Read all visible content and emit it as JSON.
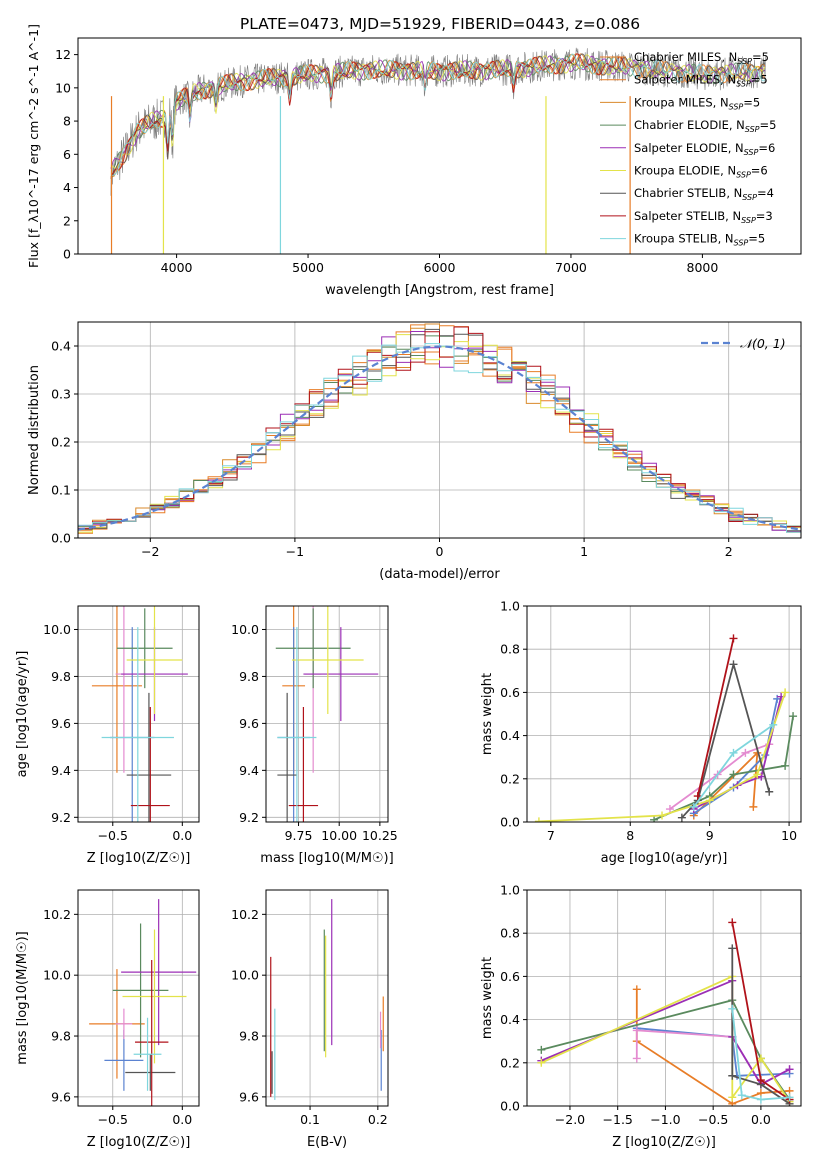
{
  "figure_title": "PLATE=0473, MJD=51929, FIBERID=0443, z=0.086",
  "colors": [
    "#e87d27",
    "#e8801e",
    "#e0892c",
    "#5a8a5e",
    "#9b2fb5",
    "#e3e34a",
    "#555555",
    "#b0121a",
    "#7fd6dd"
  ],
  "chart_data": [
    {
      "type": "line",
      "id": "spectrum",
      "title": "PLATE=0473, MJD=51929, FIBERID=0443, z=0.086",
      "xlabel": "wavelength [Angstrom, rest frame]",
      "ylabel": "Flux [f_λ10^-17 erg cm^-2 s^-1 A^-1]",
      "xlim": [
        3250,
        8750
      ],
      "ylim": [
        0,
        13
      ],
      "xticks": [
        "4000",
        "5000",
        "6000",
        "7000",
        "8000"
      ],
      "yticks": [
        "0",
        "2",
        "4",
        "6",
        "8",
        "10",
        "12"
      ],
      "legend_position": "right",
      "legend": [
        {
          "name": "Chabrier MILES",
          "nssp": "=5"
        },
        {
          "name": "Salpeter MILES",
          "nssp": "=5"
        },
        {
          "name": "Kroupa MILES",
          "nssp": "=5"
        },
        {
          "name": "Chabrier ELODIE",
          "nssp": "=5"
        },
        {
          "name": "Salpeter ELODIE",
          "nssp": "=6"
        },
        {
          "name": "Kroupa ELODIE",
          "nssp": "=6"
        },
        {
          "name": "Chabrier STELIB",
          "nssp": "=4"
        },
        {
          "name": "Salpeter STELIB",
          "nssp": "=3"
        },
        {
          "name": "Kroupa STELIB",
          "nssp": "=5"
        }
      ],
      "nssp_sub": "SSP",
      "spectrum_key": {
        "x": [
          3500,
          3600,
          3700,
          3800,
          3900,
          4000,
          4200,
          4500,
          5000,
          5500,
          6000,
          6500,
          7000,
          7500,
          8000,
          8500
        ],
        "y": [
          4.8,
          6.0,
          7.4,
          7.9,
          8.2,
          9.2,
          9.9,
          10.4,
          10.8,
          11.1,
          11.0,
          11.1,
          11.5,
          11.2,
          10.8,
          11.0
        ]
      }
    },
    {
      "type": "step",
      "id": "residuals",
      "xlabel": "(data-model)/error",
      "ylabel": "Normed distribution",
      "xlim": [
        -2.5,
        2.5
      ],
      "ylim": [
        0,
        0.45
      ],
      "xticks": [
        "−2",
        "−1",
        "0",
        "1",
        "2"
      ],
      "yticks": [
        "0.0",
        "0.1",
        "0.2",
        "0.3",
        "0.4"
      ],
      "grid": true,
      "legend_position": "top-right",
      "legend_label": "𝒩(0, 1)",
      "gaussian": {
        "mean": 0,
        "sigma": 1,
        "color": "#5b83d1"
      }
    },
    {
      "type": "errorbar",
      "id": "age-vs-z",
      "xlabel": "Z [log10(Z/Z☉)]",
      "ylabel": "age  [log10(age/yr)]",
      "xlim": [
        -0.75,
        0.12
      ],
      "ylim": [
        9.18,
        10.1
      ],
      "xticks": [
        "−0.5",
        "0.0"
      ],
      "yticks": [
        "9.2",
        "9.4",
        "9.6",
        "9.8",
        "10.0"
      ],
      "points": [
        {
          "x": -0.47,
          "xerr": 0.18,
          "y": 9.76,
          "yerr": 0.37,
          "color": "#e87d27"
        },
        {
          "x": -0.36,
          "xerr": 0.16,
          "y": 9.54,
          "yerr": 0.47,
          "color": "#5b83d1"
        },
        {
          "x": -0.42,
          "xerr": 0.06,
          "y": 9.81,
          "yerr": 0.42,
          "color": "#e48bd0"
        },
        {
          "x": -0.27,
          "xerr": 0.2,
          "y": 9.92,
          "yerr": 0.17,
          "color": "#5a8a5e"
        },
        {
          "x": -0.2,
          "xerr": 0.24,
          "y": 9.81,
          "yerr": 0.2,
          "color": "#9b2fb5"
        },
        {
          "x": -0.2,
          "xerr": 0.2,
          "y": 9.87,
          "yerr": 0.23,
          "color": "#e3e34a"
        },
        {
          "x": -0.24,
          "xerr": 0.16,
          "y": 9.38,
          "yerr": 0.35,
          "color": "#555555"
        },
        {
          "x": -0.23,
          "xerr": 0.14,
          "y": 9.25,
          "yerr": 0.42,
          "color": "#b0121a"
        },
        {
          "x": -0.32,
          "xerr": 0.26,
          "y": 9.54,
          "yerr": 0.47,
          "color": "#7fd6dd"
        }
      ]
    },
    {
      "type": "errorbar",
      "id": "age-vs-mass",
      "xlabel": "mass [log10(M/M☉)]",
      "ylabel": "",
      "xlim": [
        9.55,
        10.3
      ],
      "ylim": [
        9.18,
        10.1
      ],
      "xticks": [
        "9.75",
        "10.00",
        "10.25"
      ],
      "yticks": [
        "9.2",
        "9.4",
        "9.6",
        "9.8",
        "10.0"
      ],
      "points": [
        {
          "x": 9.72,
          "xerr": 0.07,
          "y": 9.76,
          "yerr": 0.37,
          "color": "#e87d27"
        },
        {
          "x": 9.72,
          "xerr": 0.1,
          "y": 9.54,
          "yerr": 0.47,
          "color": "#5b83d1"
        },
        {
          "x": 9.84,
          "xerr": 0.05,
          "y": 9.81,
          "yerr": 0.42,
          "color": "#e48bd0"
        },
        {
          "x": 9.84,
          "xerr": 0.23,
          "y": 9.92,
          "yerr": 0.17,
          "color": "#5a8a5e"
        },
        {
          "x": 10.01,
          "xerr": 0.23,
          "y": 9.81,
          "yerr": 0.2,
          "color": "#9b2fb5"
        },
        {
          "x": 9.93,
          "xerr": 0.22,
          "y": 9.87,
          "yerr": 0.23,
          "color": "#e3e34a"
        },
        {
          "x": 9.68,
          "xerr": 0.06,
          "y": 9.38,
          "yerr": 0.35,
          "color": "#555555"
        },
        {
          "x": 9.78,
          "xerr": 0.09,
          "y": 9.25,
          "yerr": 0.42,
          "color": "#b0121a"
        },
        {
          "x": 9.74,
          "xerr": 0.12,
          "y": 9.54,
          "yerr": 0.47,
          "color": "#7fd6dd"
        }
      ]
    },
    {
      "type": "line",
      "id": "weight-vs-age",
      "xlabel": "age  [log10(age/yr)]",
      "ylabel": "mass weight",
      "xlim": [
        6.7,
        10.15
      ],
      "ylim": [
        0,
        1
      ],
      "xticks": [
        "7",
        "8",
        "9",
        "10"
      ],
      "yticks": [
        "0.0",
        "0.2",
        "0.4",
        "0.6",
        "0.8",
        "1.0"
      ],
      "grid": true,
      "series": [
        {
          "color": "#e87d27",
          "x": [
            8.8,
            9.6,
            9.55
          ],
          "y": [
            0.03,
            0.32,
            0.07
          ]
        },
        {
          "color": "#5b83d1",
          "x": [
            8.8,
            9.3,
            9.7,
            9.85
          ],
          "y": [
            0.04,
            0.16,
            0.31,
            0.57
          ]
        },
        {
          "color": "#e48bd0",
          "x": [
            8.5,
            9.1,
            9.45,
            9.75
          ],
          "y": [
            0.06,
            0.22,
            0.32,
            0.36
          ]
        },
        {
          "color": "#5a8a5e",
          "x": [
            8.3,
            9.0,
            9.3,
            9.95,
            10.05
          ],
          "y": [
            0.01,
            0.12,
            0.22,
            0.26,
            0.49
          ]
        },
        {
          "color": "#9b2fb5",
          "x": [
            8.8,
            9.35,
            9.65,
            9.9
          ],
          "y": [
            0.06,
            0.17,
            0.21,
            0.58
          ]
        },
        {
          "color": "#e3e34a",
          "x": [
            6.85,
            8.4,
            9.0,
            9.6,
            9.95
          ],
          "y": [
            0.003,
            0.03,
            0.1,
            0.22,
            0.6
          ]
        },
        {
          "color": "#555555",
          "x": [
            8.65,
            8.85,
            9.3,
            9.75
          ],
          "y": [
            0.02,
            0.1,
            0.73,
            0.14
          ]
        },
        {
          "color": "#b0121a",
          "x": [
            8.85,
            9.3
          ],
          "y": [
            0.12,
            0.85
          ]
        },
        {
          "color": "#7fd6dd",
          "x": [
            8.8,
            9.3,
            9.8
          ],
          "y": [
            0.07,
            0.32,
            0.45
          ]
        }
      ]
    },
    {
      "type": "errorbar",
      "id": "mass-vs-z",
      "xlabel": "Z [log10(Z/Z☉)]",
      "ylabel": "mass [log10(M/M☉)]",
      "xlim": [
        -0.75,
        0.12
      ],
      "ylim": [
        9.57,
        10.28
      ],
      "xticks": [
        "−0.5",
        "0.0"
      ],
      "yticks": [
        "9.6",
        "9.8",
        "10.0",
        "10.2"
      ],
      "points": [
        {
          "x": -0.47,
          "xerr": 0.2,
          "y": 9.84,
          "yerr": 0.18,
          "color": "#e87d27"
        },
        {
          "x": -0.42,
          "xerr": 0.14,
          "y": 9.72,
          "yerr": 0.1,
          "color": "#5b83d1"
        },
        {
          "x": -0.42,
          "xerr": 0.06,
          "y": 9.84,
          "yerr": 0.05,
          "color": "#e48bd0"
        },
        {
          "x": -0.3,
          "xerr": 0.2,
          "y": 9.95,
          "yerr": 0.22,
          "color": "#5a8a5e"
        },
        {
          "x": -0.17,
          "xerr": 0.27,
          "y": 10.01,
          "yerr": 0.24,
          "color": "#9b2fb5"
        },
        {
          "x": -0.2,
          "xerr": 0.23,
          "y": 9.93,
          "yerr": 0.22,
          "color": "#e3e34a"
        },
        {
          "x": -0.23,
          "xerr": 0.18,
          "y": 9.68,
          "yerr": 0.06,
          "color": "#555555"
        },
        {
          "x": -0.22,
          "xerr": 0.12,
          "y": 9.78,
          "yerr": 0.27,
          "color": "#b0121a"
        },
        {
          "x": -0.25,
          "xerr": 0.1,
          "y": 9.74,
          "yerr": 0.12,
          "color": "#7fd6dd"
        }
      ]
    },
    {
      "type": "errorbar",
      "id": "mass-vs-ebv",
      "xlabel": "E(B-V)",
      "ylabel": "",
      "xlim": [
        0.035,
        0.215
      ],
      "ylim": [
        9.57,
        10.28
      ],
      "xticks": [
        "0.1",
        "0.2"
      ],
      "yticks": [
        "9.6",
        "9.8",
        "10.0",
        "10.2"
      ],
      "points": [
        {
          "x": 0.208,
          "xerr": 0,
          "y": 9.84,
          "yerr": 0.09,
          "color": "#e87d27"
        },
        {
          "x": 0.205,
          "xerr": 0,
          "y": 9.72,
          "yerr": 0.1,
          "color": "#5b83d1"
        },
        {
          "x": 0.204,
          "xerr": 0,
          "y": 9.82,
          "yerr": 0.06,
          "color": "#e48bd0"
        },
        {
          "x": 0.121,
          "xerr": 0,
          "y": 9.95,
          "yerr": 0.2,
          "color": "#5a8a5e"
        },
        {
          "x": 0.132,
          "xerr": 0,
          "y": 10.01,
          "yerr": 0.24,
          "color": "#9b2fb5"
        },
        {
          "x": 0.123,
          "xerr": 0,
          "y": 9.93,
          "yerr": 0.2,
          "color": "#e3e34a"
        },
        {
          "x": 0.044,
          "xerr": 0,
          "y": 9.68,
          "yerr": 0.07,
          "color": "#555555"
        },
        {
          "x": 0.042,
          "xerr": 0,
          "y": 9.83,
          "yerr": 0.23,
          "color": "#b0121a"
        },
        {
          "x": 0.048,
          "xerr": 0,
          "y": 9.74,
          "yerr": 0.15,
          "color": "#7fd6dd"
        }
      ]
    },
    {
      "type": "line",
      "id": "weight-vs-z",
      "xlabel": "Z [log10(Z/Z☉)]",
      "ylabel": "mass weight",
      "xlim": [
        -2.45,
        0.42
      ],
      "ylim": [
        0,
        1
      ],
      "xticks": [
        "−2.0",
        "−1.5",
        "−1.0",
        "−0.5",
        "0.0"
      ],
      "yticks": [
        "0.0",
        "0.2",
        "0.4",
        "0.6",
        "0.8",
        "1.0"
      ],
      "grid": true,
      "series": [
        {
          "color": "#e87d27",
          "x": [
            -1.3,
            -1.3,
            -0.3,
            0.0,
            0.3
          ],
          "y": [
            0.54,
            0.3,
            0.01,
            0.06,
            0.07
          ]
        },
        {
          "color": "#5b83d1",
          "x": [
            -1.3,
            -0.3,
            -0.25,
            0.3
          ],
          "y": [
            0.36,
            0.32,
            0.14,
            0.15
          ]
        },
        {
          "color": "#e48bd0",
          "x": [
            -1.3,
            -1.3,
            -0.3,
            0.0,
            0.3
          ],
          "y": [
            0.22,
            0.35,
            0.32,
            0.1,
            0.17
          ]
        },
        {
          "color": "#5a8a5e",
          "x": [
            -2.3,
            -0.3,
            0.0,
            0.3
          ],
          "y": [
            0.26,
            0.49,
            0.22,
            0.03
          ]
        },
        {
          "color": "#9b2fb5",
          "x": [
            -2.3,
            -0.3,
            -0.3,
            0.0,
            0.3
          ],
          "y": [
            0.21,
            0.58,
            0.32,
            0.1,
            0.17
          ]
        },
        {
          "color": "#e3e34a",
          "x": [
            -2.3,
            -0.3,
            -0.3,
            0.0,
            0.3
          ],
          "y": [
            0.2,
            0.6,
            0.04,
            0.22,
            0.02
          ]
        },
        {
          "color": "#555555",
          "x": [
            -0.3,
            -0.3,
            0.0,
            0.3
          ],
          "y": [
            0.73,
            0.14,
            0.1,
            0.01
          ]
        },
        {
          "color": "#b0121a",
          "x": [
            -0.3,
            0.0,
            0.3
          ],
          "y": [
            0.85,
            0.12,
            0.03
          ]
        },
        {
          "color": "#7fd6dd",
          "x": [
            -0.3,
            -0.2,
            0.0,
            0.3
          ],
          "y": [
            0.45,
            0.05,
            0.03,
            0.04
          ]
        }
      ]
    }
  ]
}
